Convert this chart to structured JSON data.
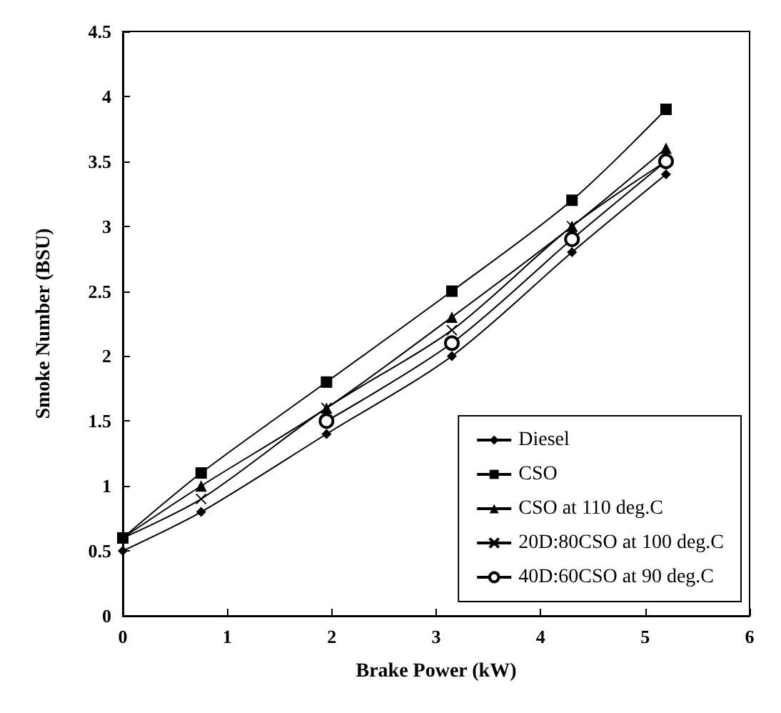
{
  "chart_data": {
    "type": "line",
    "xlabel": "Brake Power (kW)",
    "ylabel": "Smoke Number (BSU)",
    "x": [
      0,
      0.75,
      1.95,
      3.15,
      4.3,
      5.2
    ],
    "xlim": [
      0,
      6
    ],
    "xticks": [
      0,
      1,
      2,
      3,
      4,
      5,
      6
    ],
    "ylim": [
      0,
      4.5
    ],
    "yticks": [
      0,
      0.5,
      1,
      1.5,
      2,
      2.5,
      3,
      3.5,
      4,
      4.5
    ],
    "grid": false,
    "legend": "bottom right",
    "series": [
      {
        "name": "Diesel",
        "color": "#000000",
        "marker": "diamond",
        "values": [
          0.5,
          0.8,
          1.4,
          2.0,
          2.8,
          3.4
        ]
      },
      {
        "name": "CSO",
        "color": "#000000",
        "marker": "square",
        "values": [
          0.6,
          1.1,
          1.8,
          2.5,
          3.2,
          3.9
        ]
      },
      {
        "name": "CSO at 110 deg.C",
        "color": "#000000",
        "marker": "triangle",
        "values": [
          0.6,
          1.0,
          1.6,
          2.3,
          3.0,
          3.6
        ]
      },
      {
        "name": "20D:80CSO at 100 deg.C",
        "color": "#000000",
        "marker": "cross",
        "values": [
          0.6,
          0.9,
          1.6,
          2.2,
          3.0,
          3.5
        ]
      },
      {
        "name": "40D:60CSO at 90 deg.C",
        "color": "#000000",
        "marker": "circle",
        "values": [
          null,
          null,
          1.5,
          2.1,
          2.9,
          3.5
        ]
      }
    ]
  }
}
